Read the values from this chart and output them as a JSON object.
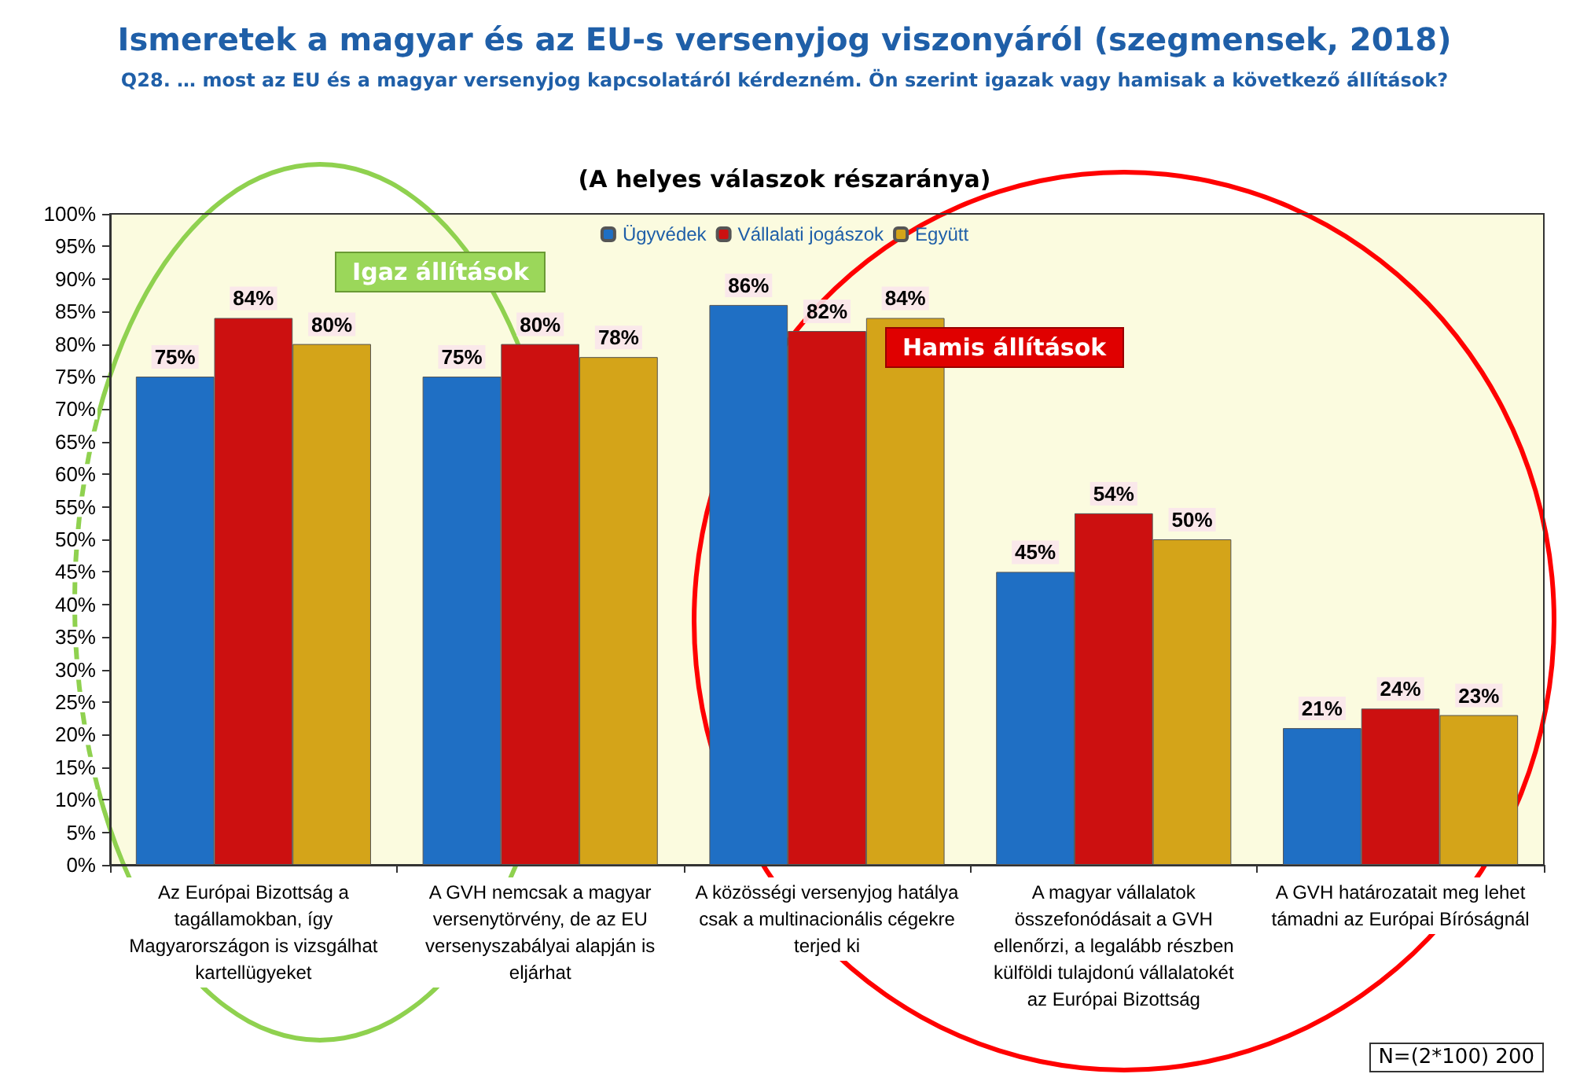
{
  "chart_data": {
    "type": "bar",
    "title": "Ismeretek a magyar és az EU-s versenyjog viszonyáról (szegmensek, 2018)",
    "subtitle": "Q28. … most az EU és a magyar versenyjog kapcsolatáról kérdezném. Ön szerint igazak vagy hamisak a következő állítások?",
    "categories": [
      "Az Európai Bizottság a\ntagállamokban, így\nMagyarországon is vizsgálhat\nkartellügyeket",
      "A GVH nemcsak a magyar\nversenytörvény, de az EU\nversenyszabályai alapján is\neljárhat",
      "A közösségi versenyjog hatálya\ncsak a multinacionális cégekre\nterjed ki",
      "A magyar vállalatok\nösszefonódásait a GVH\nellenőrzi, a legalább részben\nkülföldi tulajdonú vállalatokét\naz Európai Bizottság",
      "A GVH határozatait meg lehet\ntámadni az Európai Bíróságnál"
    ],
    "series": [
      {
        "name": "Ügyvédek",
        "color": "#1f6fc4",
        "values": [
          75,
          75,
          86,
          45,
          21
        ],
        "value_labels": [
          "75%",
          "75%",
          "86%",
          "45%",
          "21%"
        ]
      },
      {
        "name": "Vállalati jogászok",
        "color": "#cc1010",
        "values": [
          84,
          80,
          82,
          54,
          24
        ],
        "value_labels": [
          "84%",
          "80%",
          "82%",
          "54%",
          "24%"
        ]
      },
      {
        "name": "Együtt",
        "color": "#d4a419",
        "values": [
          80,
          78,
          84,
          50,
          23
        ],
        "value_labels": [
          "80%",
          "78%",
          "84%",
          "50%",
          "23%"
        ]
      }
    ],
    "ylim": [
      0,
      100
    ],
    "yticks": [
      {
        "value": 0,
        "label": "0%"
      },
      {
        "value": 5,
        "label": "5%"
      },
      {
        "value": 10,
        "label": "10%"
      },
      {
        "value": 15,
        "label": "15%"
      },
      {
        "value": 20,
        "label": "20%"
      },
      {
        "value": 25,
        "label": "25%"
      },
      {
        "value": 30,
        "label": "30%"
      },
      {
        "value": 35,
        "label": "35%"
      },
      {
        "value": 40,
        "label": "40%"
      },
      {
        "value": 45,
        "label": "45%"
      },
      {
        "value": 50,
        "label": "50%"
      },
      {
        "value": 55,
        "label": "55%"
      },
      {
        "value": 60,
        "label": "60%"
      },
      {
        "value": 65,
        "label": "65%"
      },
      {
        "value": 70,
        "label": "70%"
      },
      {
        "value": 75,
        "label": "75%"
      },
      {
        "value": 80,
        "label": "80%"
      },
      {
        "value": 85,
        "label": "85%"
      },
      {
        "value": 90,
        "label": "90%"
      },
      {
        "value": 95,
        "label": "95%"
      },
      {
        "value": 100,
        "label": "100%"
      }
    ],
    "grid": false,
    "legend": "top",
    "annotations": [
      "(A helyes válaszok részaránya)",
      "Igaz állítások",
      "Hamis állítások",
      "N=(2*100) 200"
    ]
  }
}
